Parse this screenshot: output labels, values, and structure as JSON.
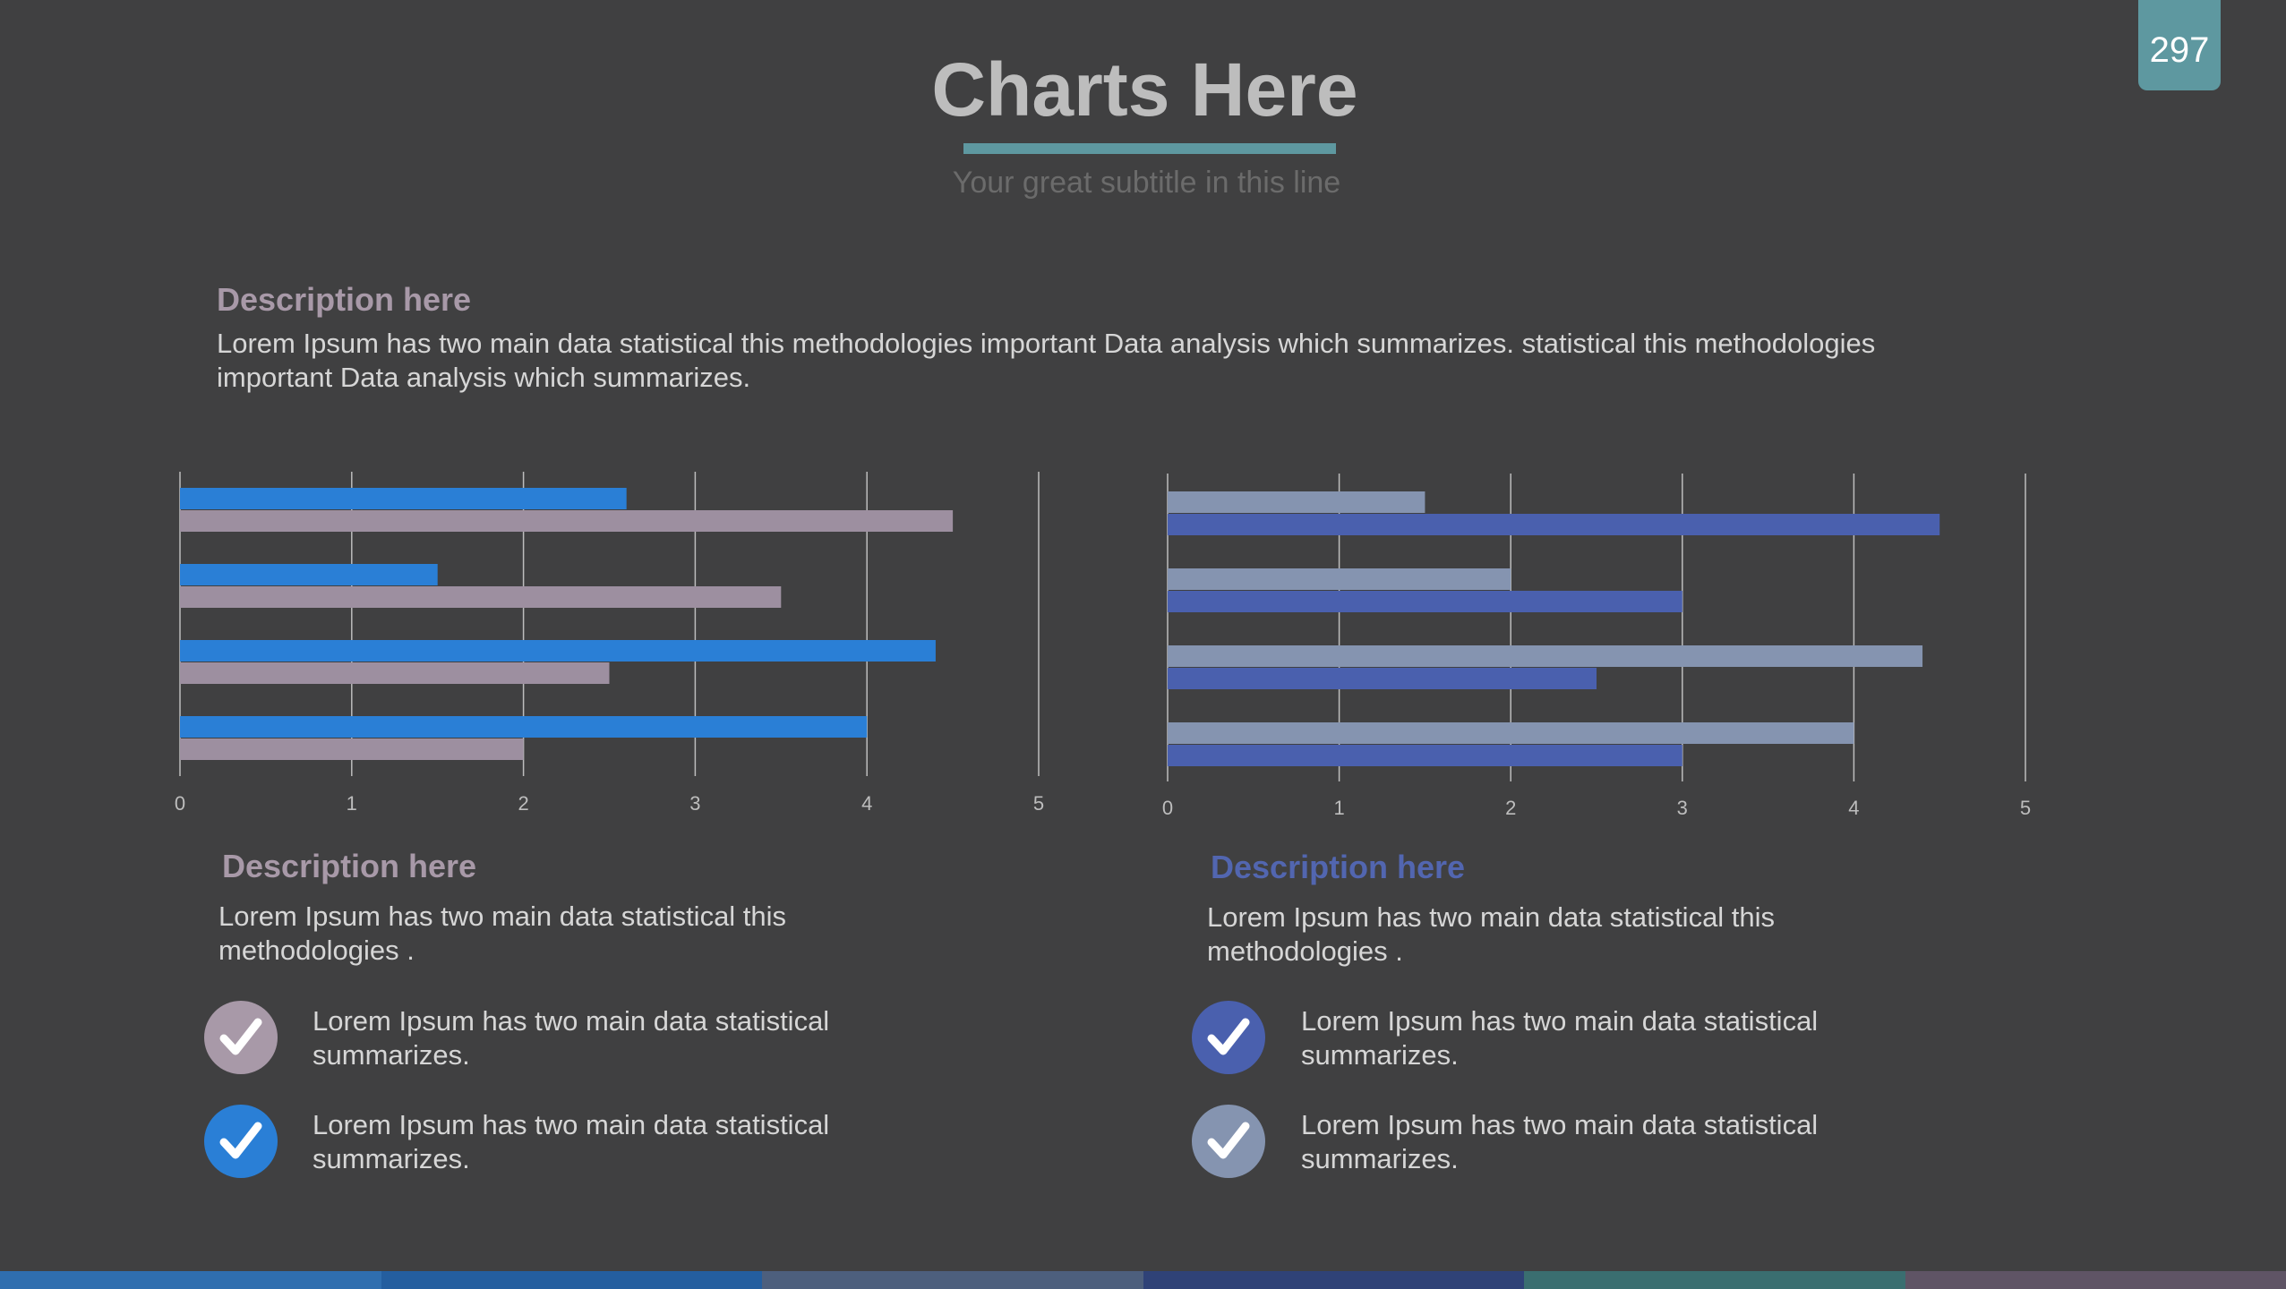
{
  "page_number": "297",
  "header": {
    "title": "Charts Here",
    "subtitle": "Your great subtitle in this line"
  },
  "main_description": {
    "heading": "Description here",
    "text": "Lorem Ipsum has two main data statistical this methodologies important Data analysis which summarizes. statistical this methodologies important Data analysis which summarizes."
  },
  "left_panel": {
    "heading": "Description here",
    "text": "Lorem Ipsum has two main data statistical this methodologies .",
    "checks": [
      {
        "text": "Lorem Ipsum has two main data statistical summarizes.",
        "color": "#a899a8"
      },
      {
        "text": "Lorem Ipsum has two main data statistical summarizes.",
        "color": "#2a7fd6"
      }
    ]
  },
  "right_panel": {
    "heading": "Description here",
    "text": "Lorem Ipsum has two main data statistical this methodologies .",
    "checks": [
      {
        "text": "Lorem Ipsum has two main data statistical summarizes.",
        "color": "#4a60ae"
      },
      {
        "text": "Lorem Ipsum has two main data statistical summarizes.",
        "color": "#8594b0"
      }
    ]
  },
  "chart_data": [
    {
      "type": "bar",
      "orientation": "horizontal",
      "xlim": [
        0,
        5
      ],
      "ticks": [
        "0",
        "1",
        "2",
        "3",
        "4",
        "5"
      ],
      "grid": true,
      "series": [
        {
          "color": "#2a7fd6",
          "values": [
            2.6,
            1.5,
            4.4,
            4.0
          ]
        },
        {
          "color": "#9d8fa0",
          "values": [
            4.5,
            3.5,
            2.5,
            2.0
          ]
        }
      ]
    },
    {
      "type": "bar",
      "orientation": "horizontal",
      "xlim": [
        0,
        5
      ],
      "ticks": [
        "0",
        "1",
        "2",
        "3",
        "4",
        "5"
      ],
      "grid": true,
      "series": [
        {
          "color": "#8594b0",
          "values": [
            1.5,
            2.0,
            4.4,
            4.0
          ]
        },
        {
          "color": "#4a60ae",
          "values": [
            4.5,
            3.0,
            2.5,
            3.0
          ]
        }
      ]
    }
  ],
  "footer_colors": [
    "#2f6eaf",
    "#245e9f",
    "#4d5f7d",
    "#2f4277",
    "#3a6e70",
    "#5f5465"
  ]
}
